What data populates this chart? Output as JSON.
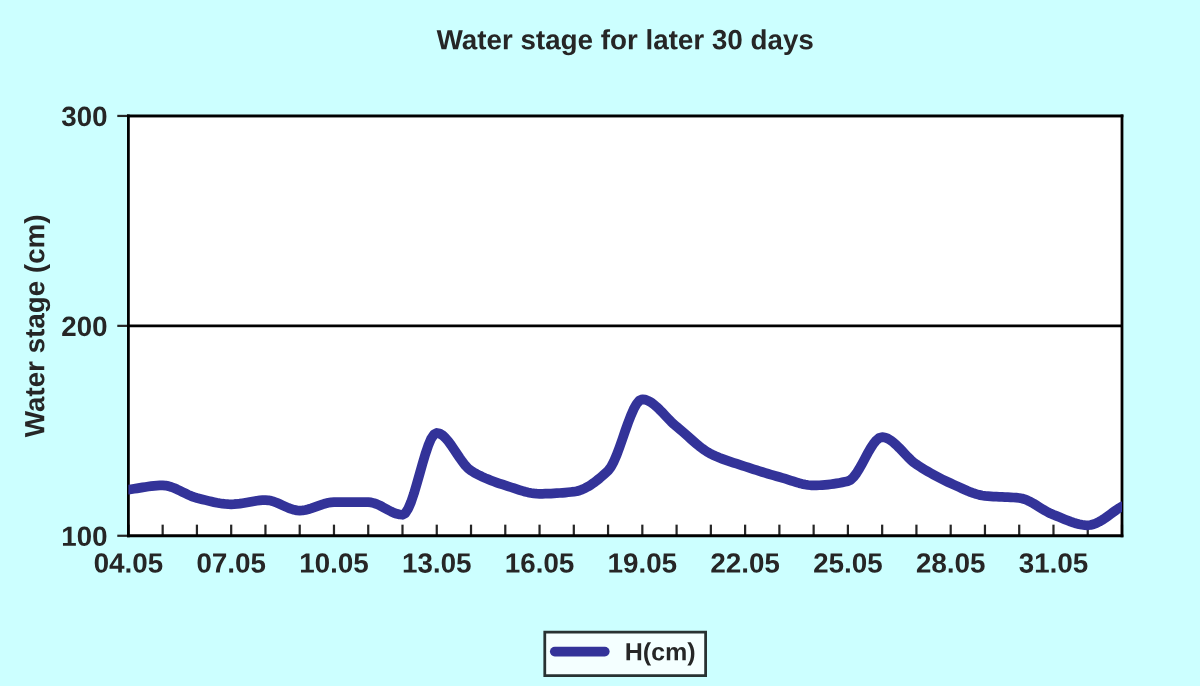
{
  "chart_data": {
    "type": "line",
    "title": "Water stage for later 30 days",
    "ylabel": "Water stage (cm)",
    "categories": [
      "04.05",
      null,
      null,
      "07.05",
      null,
      null,
      "10.05",
      null,
      null,
      "13.05",
      null,
      null,
      "16.05",
      null,
      null,
      "19.05",
      null,
      null,
      "22.05",
      null,
      null,
      "25.05",
      null,
      null,
      "28.05",
      null,
      null,
      "31.05",
      null,
      null
    ],
    "series": [
      {
        "name": "H(cm)",
        "color": "#333399",
        "values": [
          122,
          124,
          118,
          115,
          117,
          112,
          116,
          116,
          110,
          149,
          131,
          124,
          120,
          121,
          131,
          165,
          152,
          139,
          133,
          128,
          124,
          126,
          147,
          134,
          125,
          119,
          118,
          110,
          105,
          114
        ]
      }
    ],
    "ylim": [
      100,
      300
    ],
    "yticks": [
      100,
      200,
      300
    ],
    "grid": "y",
    "legend": "bottom",
    "marker": "none",
    "line_style": "solid"
  }
}
